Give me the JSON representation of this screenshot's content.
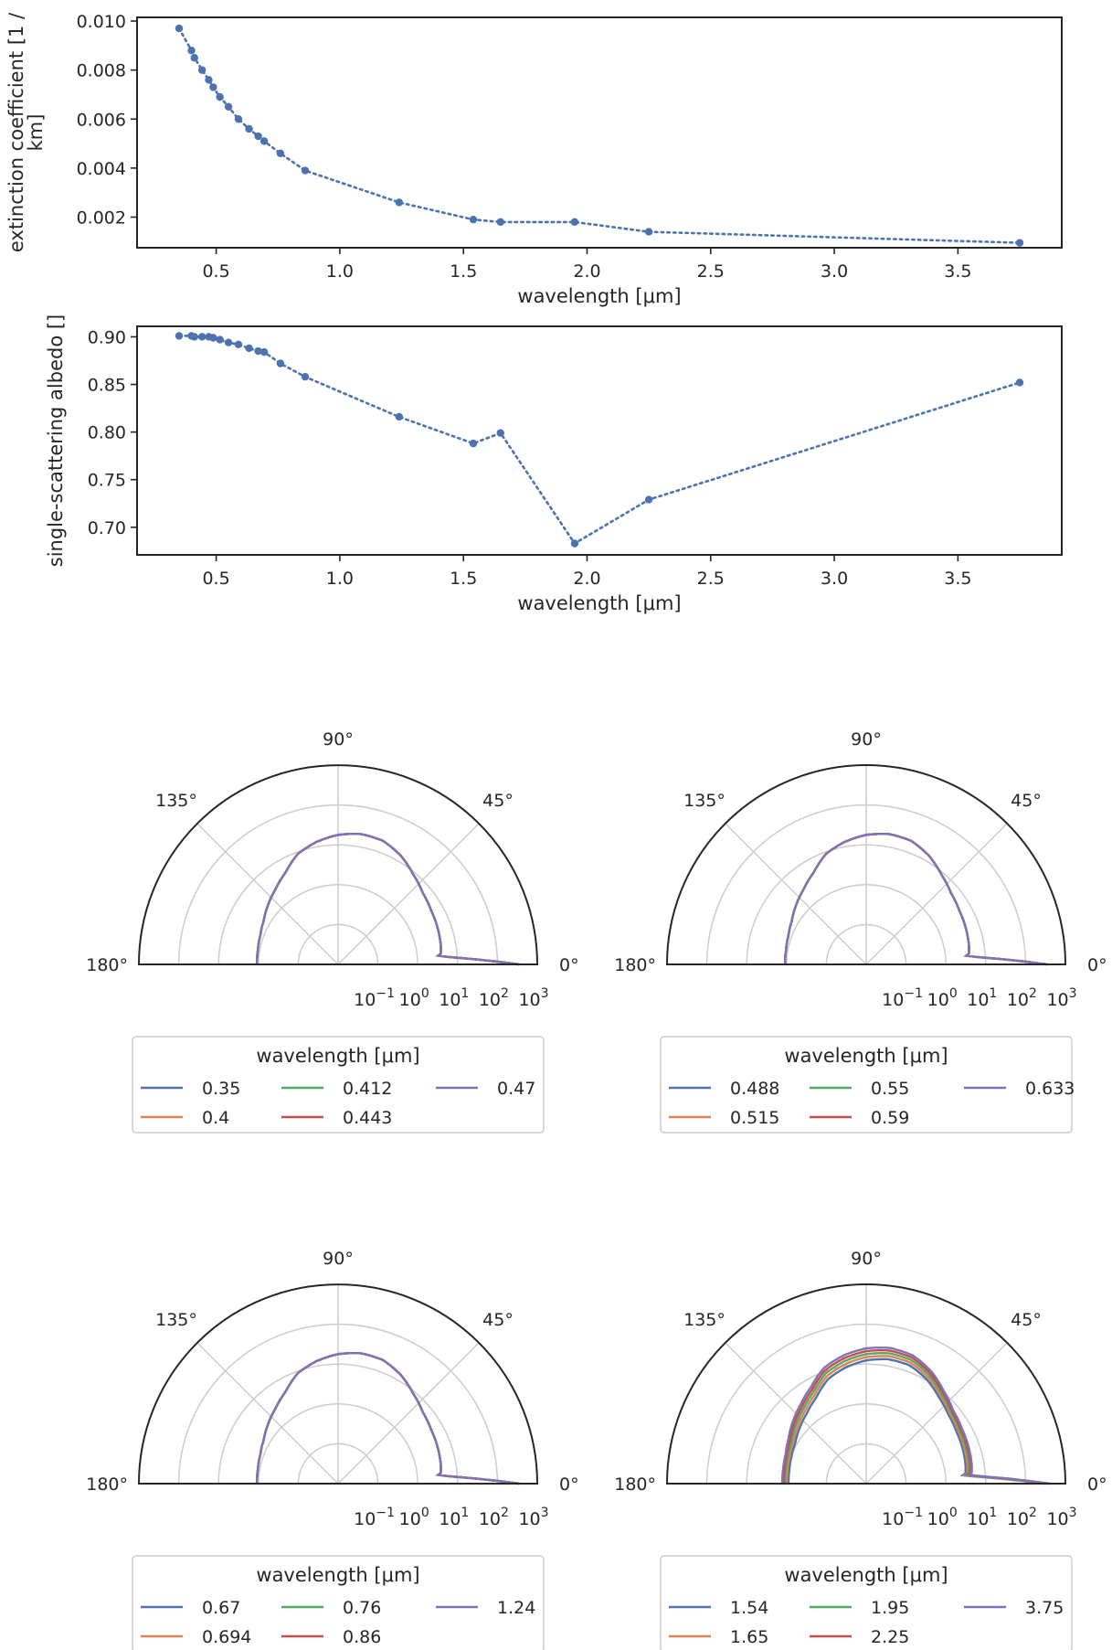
{
  "chart_data": [
    {
      "type": "line",
      "xlabel": "wavelength [μm]",
      "ylabel": "extinction coefficient [1 / km]",
      "ylabel_lines": [
        "extinction coefficient [1 /",
        "km]"
      ],
      "xlim": [
        0.18,
        3.92
      ],
      "ylim": [
        0.00075,
        0.01015
      ],
      "xticks": [
        0.5,
        1.0,
        1.5,
        2.0,
        2.5,
        3.0,
        3.5
      ],
      "xtick_labels": [
        "0.5",
        "1.0",
        "1.5",
        "2.0",
        "2.5",
        "3.0",
        "3.5"
      ],
      "yticks": [
        0.002,
        0.004,
        0.006,
        0.008,
        0.01
      ],
      "ytick_labels": [
        "0.002",
        "0.004",
        "0.006",
        "0.008",
        "0.010"
      ],
      "grid": false,
      "line_style": "dotted with circle markers",
      "color": "#4c72b0",
      "x": [
        0.35,
        0.4,
        0.412,
        0.443,
        0.47,
        0.488,
        0.515,
        0.55,
        0.59,
        0.633,
        0.67,
        0.694,
        0.76,
        0.86,
        1.24,
        1.54,
        1.65,
        1.95,
        2.25,
        3.75
      ],
      "y": [
        0.0097,
        0.0088,
        0.0085,
        0.008,
        0.0076,
        0.0073,
        0.0069,
        0.0065,
        0.006,
        0.0056,
        0.0053,
        0.0051,
        0.0046,
        0.0039,
        0.0026,
        0.0019,
        0.0018,
        0.0018,
        0.0014,
        0.00095
      ]
    },
    {
      "type": "line",
      "xlabel": "wavelength [μm]",
      "ylabel": "single-scattering albedo []",
      "xlim": [
        0.18,
        3.92
      ],
      "ylim": [
        0.671,
        0.911
      ],
      "xticks": [
        0.5,
        1.0,
        1.5,
        2.0,
        2.5,
        3.0,
        3.5
      ],
      "xtick_labels": [
        "0.5",
        "1.0",
        "1.5",
        "2.0",
        "2.5",
        "3.0",
        "3.5"
      ],
      "yticks": [
        0.7,
        0.75,
        0.8,
        0.85,
        0.9
      ],
      "ytick_labels": [
        "0.70",
        "0.75",
        "0.80",
        "0.85",
        "0.90"
      ],
      "grid": false,
      "line_style": "dotted with circle markers",
      "color": "#4c72b0",
      "x": [
        0.35,
        0.4,
        0.412,
        0.443,
        0.47,
        0.488,
        0.515,
        0.55,
        0.59,
        0.633,
        0.67,
        0.694,
        0.76,
        0.86,
        1.24,
        1.54,
        1.65,
        1.95,
        2.25,
        3.75
      ],
      "y": [
        0.901,
        0.901,
        0.9,
        0.9,
        0.9,
        0.899,
        0.897,
        0.894,
        0.892,
        0.888,
        0.885,
        0.884,
        0.872,
        0.858,
        0.816,
        0.788,
        0.799,
        0.683,
        0.729,
        0.852
      ]
    },
    {
      "type": "polar",
      "description": "phase function, half polar plot, log radial axis",
      "angle_range_deg": [
        0,
        180
      ],
      "angle_tick_labels": [
        "0°",
        "45°",
        "90°",
        "135°",
        "180°"
      ],
      "radial_scale": "log",
      "radial_tick_exponents": [
        "-1",
        "0",
        "1",
        "2",
        "3"
      ],
      "radial_tick_base": "10",
      "legend": {
        "title": "wavelength [μm]",
        "columns": 3,
        "placement": "below",
        "entries": [
          "0.35",
          "0.4",
          "0.412",
          "0.443",
          "0.47"
        ]
      },
      "series": [
        {
          "name": "0.35",
          "color": "#4c72b0"
        },
        {
          "name": "0.4",
          "color": "#dd8452"
        },
        {
          "name": "0.412",
          "color": "#55a868"
        },
        {
          "name": "0.443",
          "color": "#c44e52"
        },
        {
          "name": "0.47",
          "color": "#8172b3"
        }
      ]
    },
    {
      "type": "polar",
      "angle_range_deg": [
        0,
        180
      ],
      "angle_tick_labels": [
        "0°",
        "45°",
        "90°",
        "135°",
        "180°"
      ],
      "radial_scale": "log",
      "radial_tick_exponents": [
        "-1",
        "0",
        "1",
        "2",
        "3"
      ],
      "radial_tick_base": "10",
      "legend": {
        "title": "wavelength [μm]",
        "columns": 3,
        "placement": "below",
        "entries": [
          "0.488",
          "0.515",
          "0.55",
          "0.59",
          "0.633"
        ]
      },
      "series": [
        {
          "name": "0.488",
          "color": "#4c72b0"
        },
        {
          "name": "0.515",
          "color": "#dd8452"
        },
        {
          "name": "0.55",
          "color": "#55a868"
        },
        {
          "name": "0.59",
          "color": "#c44e52"
        },
        {
          "name": "0.633",
          "color": "#8172b3"
        }
      ]
    },
    {
      "type": "polar",
      "angle_range_deg": [
        0,
        180
      ],
      "angle_tick_labels": [
        "0°",
        "45°",
        "90°",
        "135°",
        "180°"
      ],
      "radial_scale": "log",
      "radial_tick_exponents": [
        "-1",
        "0",
        "1",
        "2",
        "3"
      ],
      "radial_tick_base": "10",
      "legend": {
        "title": "wavelength [μm]",
        "columns": 3,
        "placement": "below",
        "entries": [
          "0.67",
          "0.694",
          "0.76",
          "0.86",
          "1.24"
        ]
      },
      "series": [
        {
          "name": "0.67",
          "color": "#4c72b0"
        },
        {
          "name": "0.694",
          "color": "#dd8452"
        },
        {
          "name": "0.76",
          "color": "#55a868"
        },
        {
          "name": "0.86",
          "color": "#c44e52"
        },
        {
          "name": "1.24",
          "color": "#8172b3"
        }
      ]
    },
    {
      "type": "polar",
      "angle_range_deg": [
        0,
        180
      ],
      "angle_tick_labels": [
        "0°",
        "45°",
        "90°",
        "135°",
        "180°"
      ],
      "radial_scale": "log",
      "radial_tick_exponents": [
        "-1",
        "0",
        "1",
        "2",
        "3"
      ],
      "radial_tick_base": "10",
      "legend": {
        "title": "wavelength [μm]",
        "columns": 3,
        "placement": "below",
        "entries": [
          "1.54",
          "1.65",
          "1.95",
          "2.25",
          "3.75"
        ]
      },
      "series": [
        {
          "name": "1.54",
          "color": "#4c72b0"
        },
        {
          "name": "1.65",
          "color": "#dd8452"
        },
        {
          "name": "1.95",
          "color": "#55a868"
        },
        {
          "name": "2.25",
          "color": "#c44e52"
        },
        {
          "name": "3.75",
          "color": "#8172b3"
        }
      ]
    }
  ]
}
